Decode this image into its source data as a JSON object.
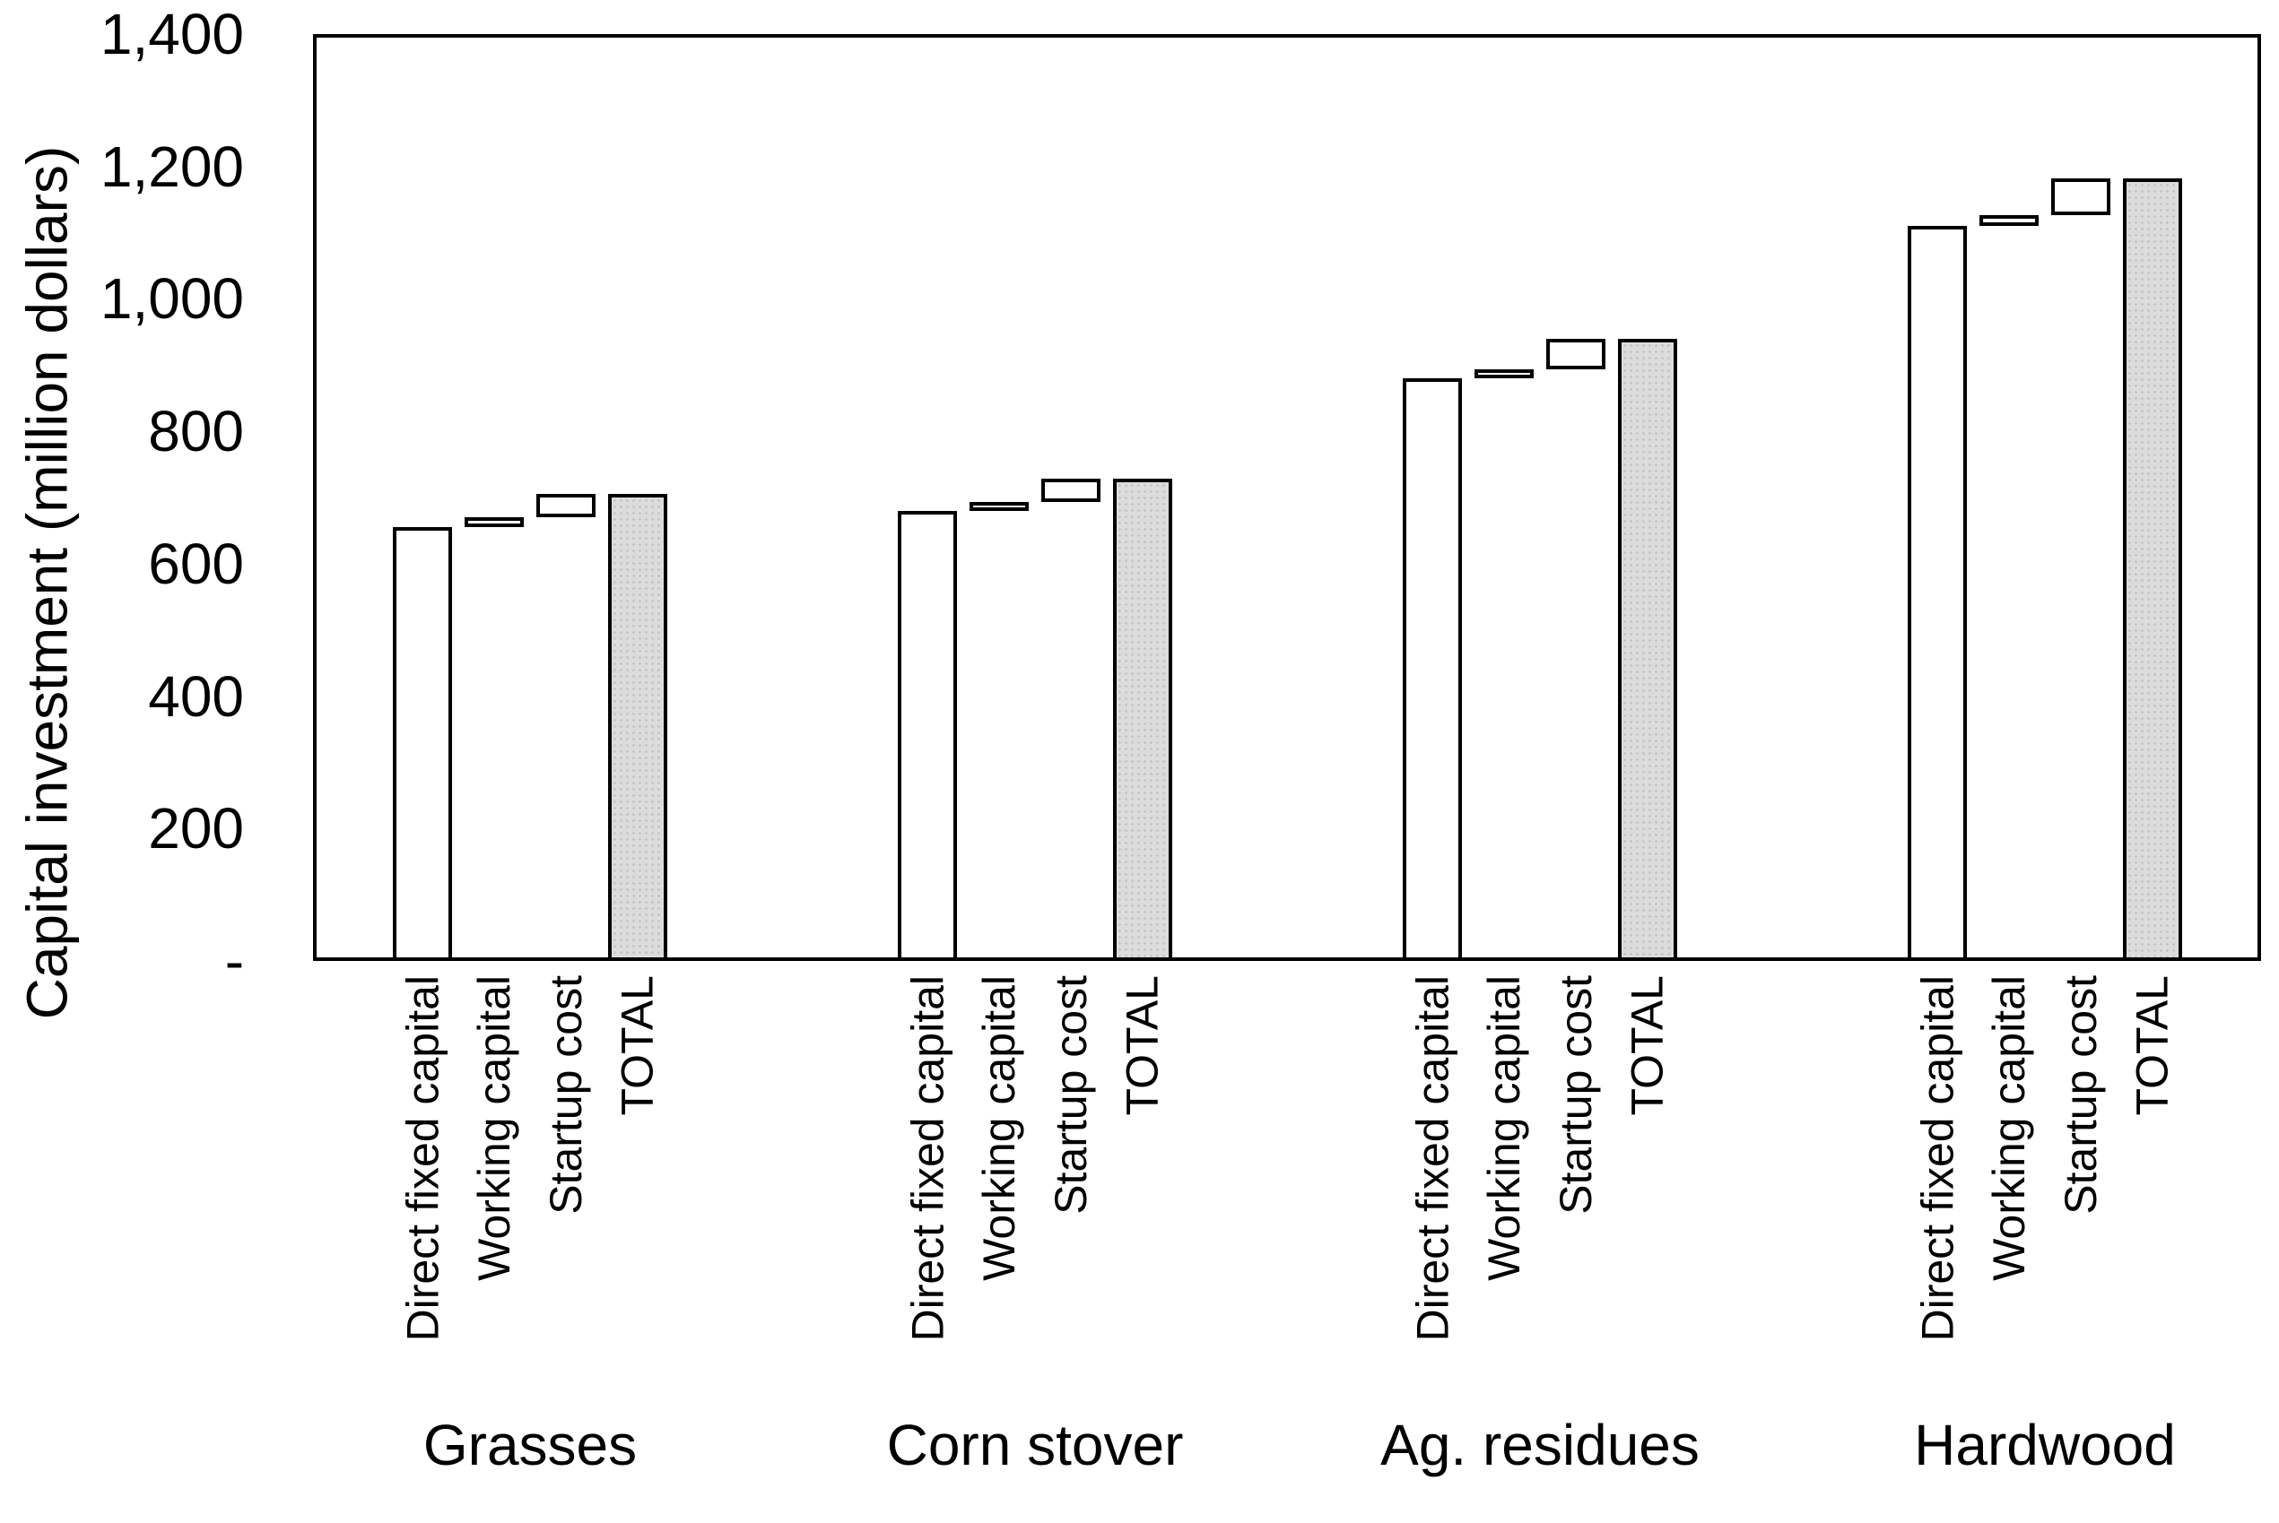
{
  "chart_data": {
    "type": "bar",
    "subtype": "grouped-waterfall",
    "title": "",
    "xlabel": "",
    "ylabel": "Capital investment (million dollars)",
    "ylim": [
      0,
      1400
    ],
    "ytick_interval": 200,
    "ytick_labels": [
      "-",
      "200",
      "400",
      "600",
      "800",
      "1,000",
      "1,200",
      "1,400"
    ],
    "grid": false,
    "legend": "none",
    "bar_labels": [
      "Direct fixed capital",
      "Working capital",
      "Startup cost",
      "TOTAL"
    ],
    "categories": [
      "Grasses",
      "Corn stover",
      "Ag. residues",
      "Hardwood"
    ],
    "groups": [
      {
        "category": "Grasses",
        "bars": [
          {
            "label": "Direct fixed capital",
            "start": 0,
            "end": 655,
            "style": "white"
          },
          {
            "label": "Working capital",
            "start": 655,
            "end": 670,
            "style": "white"
          },
          {
            "label": "Startup cost",
            "start": 670,
            "end": 705,
            "style": "white"
          },
          {
            "label": "TOTAL",
            "start": 0,
            "end": 705,
            "style": "gray"
          }
        ]
      },
      {
        "category": "Corn stover",
        "bars": [
          {
            "label": "Direct fixed capital",
            "start": 0,
            "end": 680,
            "style": "white"
          },
          {
            "label": "Working capital",
            "start": 680,
            "end": 693,
            "style": "white"
          },
          {
            "label": "Startup cost",
            "start": 693,
            "end": 728,
            "style": "white"
          },
          {
            "label": "TOTAL",
            "start": 0,
            "end": 728,
            "style": "gray"
          }
        ]
      },
      {
        "category": "Ag. residues",
        "bars": [
          {
            "label": "Direct fixed capital",
            "start": 0,
            "end": 880,
            "style": "white"
          },
          {
            "label": "Working capital",
            "start": 880,
            "end": 894,
            "style": "white"
          },
          {
            "label": "Startup cost",
            "start": 894,
            "end": 939,
            "style": "white"
          },
          {
            "label": "TOTAL",
            "start": 0,
            "end": 939,
            "style": "gray"
          }
        ]
      },
      {
        "category": "Hardwood",
        "bars": [
          {
            "label": "Direct fixed capital",
            "start": 0,
            "end": 1110,
            "style": "white"
          },
          {
            "label": "Working capital",
            "start": 1110,
            "end": 1126,
            "style": "white"
          },
          {
            "label": "Startup cost",
            "start": 1126,
            "end": 1182,
            "style": "white"
          },
          {
            "label": "TOTAL",
            "start": 0,
            "end": 1182,
            "style": "gray"
          }
        ]
      }
    ],
    "colors": {
      "bar_fill": "#ffffff",
      "total_fill": "#dcdcdc",
      "total_dot": "#c2c2c2",
      "border": "#000000",
      "text": "#000000",
      "background": "#ffffff"
    }
  }
}
